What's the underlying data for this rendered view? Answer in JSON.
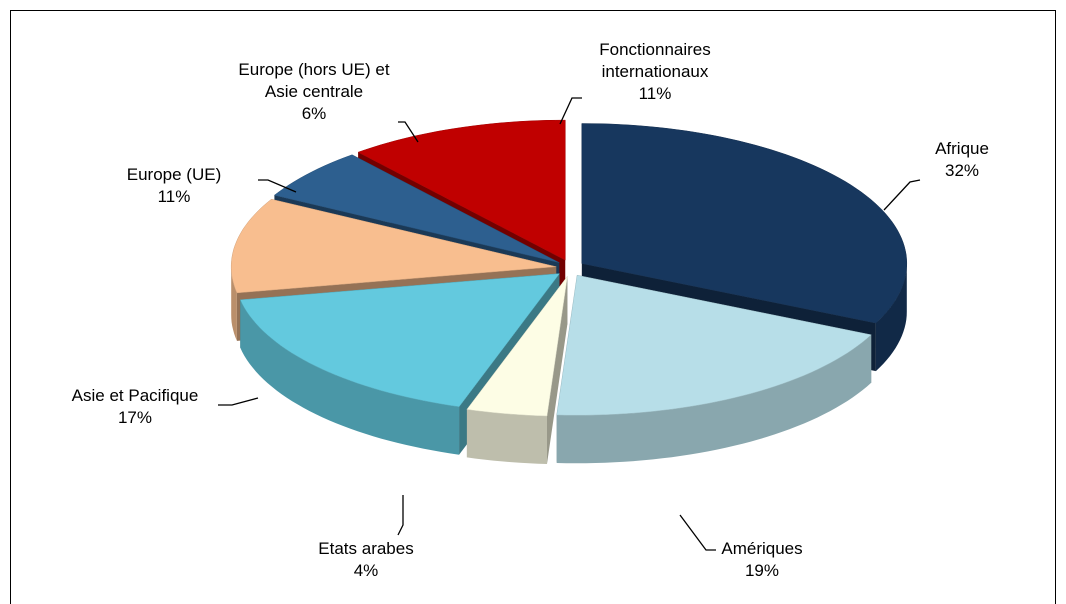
{
  "chart_data": {
    "type": "pie3d",
    "categories": [
      "Afrique",
      "Amériques",
      "Etats arabes",
      "Asie et Pacifique",
      "Europe (UE)",
      "Europe (hors UE) et\nAsie centrale",
      "Fonctionnaires\ninternationaux"
    ],
    "values": [
      32,
      19,
      4,
      17,
      11,
      6,
      11
    ],
    "value_labels": [
      "32%",
      "19%",
      "4%",
      "17%",
      "11%",
      "6%",
      "11%"
    ],
    "colors": [
      "#17375e",
      "#b7dee8",
      "#fdfde5",
      "#63c9de",
      "#f8be8f",
      "#2d5f8f",
      "#c00000"
    ]
  }
}
